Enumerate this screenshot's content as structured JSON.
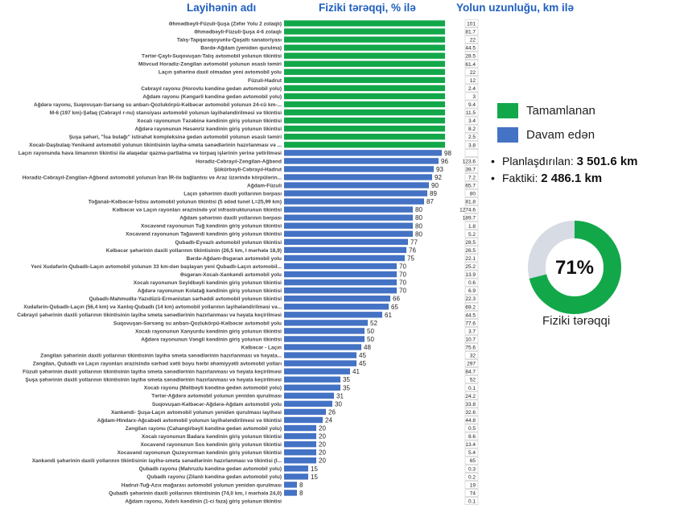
{
  "headers": {
    "name_col": "Layihənin adı",
    "progress_col": "Fiziki tərəqqi, % ilə",
    "length_col": "Yolun uzunluğu, km ilə"
  },
  "legend": {
    "completed": "Tamamlanan",
    "ongoing": "Davam edən"
  },
  "colors": {
    "completed": "#12a84a",
    "ongoing": "#4472c4",
    "donut_rest": "#d6dbe4"
  },
  "stats": {
    "planned_label": "Planlaşdırılan:",
    "planned_value": "3 501.6 km",
    "actual_label": "Faktiki:",
    "actual_value": "2 486.1 km"
  },
  "donut": {
    "percent": 71,
    "percent_label": "71%",
    "caption": "Fiziki tərəqqi"
  },
  "chart_data": {
    "type": "bar",
    "orientation": "horizontal",
    "title": "",
    "xlabel": "Fiziki tərəqqi, % ilə",
    "ylabel": "Layihənin adı",
    "xlim": [
      0,
      100
    ],
    "categories": [
      "Əhmədbəyli-Füzuli-Şuşa (Zəfər Yolu 2 zolaqlı)",
      "Əhmədbəyli-Füzuli-Şuşa 4-6 zolaqlı",
      "Talış-Tapqaraqoyunlu-Qaşaltı sanatoriyası",
      "Bərdə-Ağdam (yenidən qurulma)",
      "Tərtər-Çaylı-Suqovuşan-Talış avtomobil yolunun tikintisi",
      "Mövcud Horadiz-Zəngilan avtomobil yolunun əsaslı təmiri",
      "Laçın şəhərinə daxil olmadan yeni avtomobil yolu",
      "Füzuli-Hadrut",
      "Cəbrayıl rayonu (Horovlu kəndinə gedən avtomobil yolu)",
      "Ağdam rayonu (Kəngərli kəndinə gedən avtomobil yolu)",
      "Ağdərə rayonu, Suqovuşan-Sərsəng su anbarı-Qozlukörpü-Kəlbəcər avtomobil yolunun 24-cü km-...",
      "M-6 (197 km)-Şəfaq (Cəbrayıl r-nu) stansiyası avtomobil yolunun layihələndirilməsi və tikintisi",
      "Xocalı rayonunun Təzəbinə kəndinin giriş yolunun tikintisi",
      "Ağdərə rayonunun Həsənriz kəndinin giriş yolunun tikintisi",
      "Şuşa şəhəri, \"İsa bulağı\" istirahət kompleksinə gedən avtomobil yolunun əsaslı təmiri",
      "Xocalı-Daşbulaq-Yenikənd avtomobil yolunun tikintisinin layihə-smeta sənədlərinin hazırlanması və ...",
      "Laçın rayonunda hava limanının tikintisi ilə əlaqədar qazma-partlatma və torpaq işlərinin yerinə yetirilməsi",
      "Horadiz-Cəbrayıl-Zəngilan-Ağbənd",
      "Şükürbəyli-Cəbrayıl-Hadrut",
      "Horadiz-Cəbrayıl-Zəngilan-Ağbənd avtomobil yolunun İran İR-ilə bağlantısı və Araz üzərində körpülərin...",
      "Ağdam-Füzuli",
      "Laçın şəhərinin daxili yollarının bərpası",
      "Toğanalı-Kəlbəcər-İstisu avtomobil yolunun tikintisi (5 ədəd tunel L=25,99 km)",
      "Kəlbəcər və Laçın rayonları ərazisində yol infrastrukturunun tikintisi",
      "Ağdam şəhərinin daxili yollarının bərpası",
      "Xocavənd rayonunun Tuğ kəndinin giriş yolunun tikintisi",
      "Xocavənd rayonunun Tağaverdi kəndinin giriş yolunun tikintisi",
      "Qubadlı-Eyvazlı avtomobil yolunun tikintisi",
      "Kəlbəcər şəhərinin daxili yollarının tikintisinin (26,5 km, I mərhələ 18,9)",
      "Bərdə-Ağdam-Əsgəran avtomobil yolu",
      "Yeni Xudafərin-Qubadlı-Laçın avtomobil yolunun 33 km-dən başlayan yeni Qubadlı-Laçın avtomobil...",
      "Əsgəran-Xocalı-Xankəndi avtomobil yolu",
      "Xocalı rayonunun Seyidbəyli kəndinin giriş yolunun tikintisi",
      "Ağdərə rayonunun Kolatağ kəndinin giriş yolunun tikintisi",
      "Qubadlı-Mahmudlu-Yazıdüzü-Ermənistan sərhəddi avtomobil yolunun tikintisi",
      "Xudafərin-Qubadlı-Laçın (56,4 km) və Xanlıq-Qubadlı (14 km) avtomobil yollarının layihələndirilməsi və...",
      "Cəbrayıl şəhərinin daxili yollarının tikintisinin layihə smeta sənədlərinin hazırlanması və həyata keçirilməsi",
      "Suqovuşan-Sərsəng su anbarı-Qozlukörpü-Kəlbəcər avtomobil yolu",
      "Xocalı rayonunun Xanyurdu kəndinin giriş yolunun tikintisi",
      "Ağdərə rayonunun Vəngli kəndinin giriş yolunun tikintisi",
      "Kəlbəcər - Laçın",
      "Zəngilan şəhərinin daxili yollarının tikintisinin layihə smeta sənədlərinin hazırlanması və həyata...",
      "Zəngilan, Qubadlı və Laçın rayonları ərazisində sərhəd xətti boyu hərbi əhəmiyyətli avtomobil yolları",
      "Füzuli şəhərinin daxili yollarının tikintisinin layihə smeta sənədlərinin hazırlanması və həyata keçirilməsi",
      "Şuşa şəhərinin daxili yollarının tikintisinin layihə smeta sənədlərinin hazırlanması və həyata keçirilməsi",
      "Xocalı rayonu (Məlibəyli kəndinə gedən avtomobil yolu)",
      "Tərtər-Ağdərə avtomobil yolunun yenidən qurulması",
      "Suqovuşan-Kəlbəcər-Ağdərə-Ağdam avtomobil yolu",
      "Xankəndi- Şuşa-Laçın avtomobil yolunun yenidən qurulması layihəsi",
      "Ağdam-Hindarx-Ağcabədi avtomobil yolunun layihələndirilməsi və tikintisi",
      "Zəngilan rayonu (Cahangirbəyli kəndinə gedən avtomobil yolu)",
      "Xocalı rayonunun Badara kəndinin giriş yolunun tikintisi",
      "Xocavənd rayonunun Sos kəndinin giriş yolunun tikintisi",
      "Xocavənd rayonunun Quzeyxırman kəndinin giriş yolunun tikintisi",
      "Xankəndi şəhərinin daxili yollarının tikintisinin layihə-smeta sənədlərinin hazırlanması və tikintisi (I...",
      "Qubadlı rayonu (Mahruzlu kəndinə gedən avtomobil yolu)",
      "Qubadlı rayonu (Zilanlı kəndinə gedən avtomobil yolu)",
      "Hadrut-Tuğ-Azıx mağarası avtomobil yolunun yenidən qurulması",
      "Qubadlı şəhərinin daxili yollarının tikintisinin (74,0 km, I mərhələ 24,0)",
      "Ağdam rayonu, Xıdırlı kəndinin (1-ci faza) giriş yolunun tikintisi"
    ],
    "series": [
      {
        "name": "Fiziki tərəqqi, % ilə",
        "values": [
          100,
          100,
          100,
          100,
          100,
          100,
          100,
          100,
          100,
          100,
          100,
          100,
          100,
          100,
          100,
          100,
          98,
          96,
          93,
          92,
          90,
          89,
          87,
          80,
          80,
          80,
          80,
          77,
          76,
          75,
          70,
          70,
          70,
          70,
          66,
          65,
          61,
          52,
          50,
          50,
          48,
          45,
          45,
          41,
          35,
          35,
          31,
          30,
          26,
          24,
          20,
          20,
          20,
          20,
          20,
          15,
          15,
          8,
          8,
          0
        ]
      },
      {
        "name": "Yolun uzunluğu, km ilə",
        "values": [
          101,
          81.7,
          22,
          44.5,
          28.5,
          61.4,
          22,
          12,
          2.4,
          3,
          9.4,
          11.5,
          3.4,
          8.2,
          2.5,
          3.8,
          "",
          123.6,
          39.7,
          7.2,
          65.7,
          80,
          81.8,
          1274.6,
          189.7,
          1.8,
          5.2,
          28.5,
          26.5,
          22.1,
          25.2,
          13.9,
          0.6,
          6.9,
          22.3,
          69.2,
          44.5,
          77.6,
          3.7,
          10.7,
          75.6,
          32,
          297,
          84.7,
          52,
          0.1,
          24.2,
          33.8,
          32.6,
          44.8,
          0.5,
          8.6,
          13.4,
          5.4,
          65,
          0.3,
          0.2,
          19,
          74,
          0.1
        ]
      }
    ],
    "status": [
      "completed",
      "completed",
      "completed",
      "completed",
      "completed",
      "completed",
      "completed",
      "completed",
      "completed",
      "completed",
      "completed",
      "completed",
      "completed",
      "completed",
      "completed",
      "completed",
      "ongoing",
      "ongoing",
      "ongoing",
      "ongoing",
      "ongoing",
      "ongoing",
      "ongoing",
      "ongoing",
      "ongoing",
      "ongoing",
      "ongoing",
      "ongoing",
      "ongoing",
      "ongoing",
      "ongoing",
      "ongoing",
      "ongoing",
      "ongoing",
      "ongoing",
      "ongoing",
      "ongoing",
      "ongoing",
      "ongoing",
      "ongoing",
      "ongoing",
      "ongoing",
      "ongoing",
      "ongoing",
      "ongoing",
      "ongoing",
      "ongoing",
      "ongoing",
      "ongoing",
      "ongoing",
      "ongoing",
      "ongoing",
      "ongoing",
      "ongoing",
      "ongoing",
      "ongoing",
      "ongoing",
      "ongoing",
      "ongoing",
      "ongoing"
    ]
  }
}
